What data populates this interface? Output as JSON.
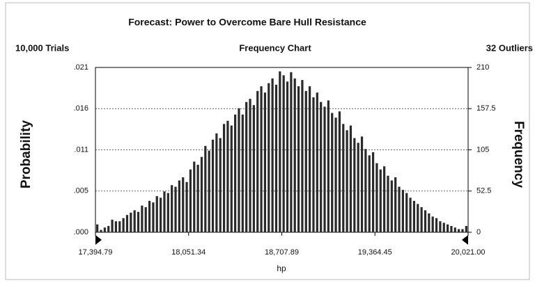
{
  "chart_data": {
    "type": "histogram",
    "title": "Forecast: Power to Overcome Bare Hull Resistance",
    "trials_label": "10,000 Trials",
    "subtitle": "Frequency Chart",
    "outliers_label": "32 Outliers",
    "ylabel": "Probability",
    "y2label": "Frequency",
    "xlabel": "hp",
    "color": "#2a2a2a",
    "grid": true,
    "xlim": [
      17394.79,
      20021.0
    ],
    "xticks": [
      {
        "value": 17394.79,
        "label": "17,394.79"
      },
      {
        "value": 18051.34,
        "label": "18,051.34"
      },
      {
        "value": 18707.89,
        "label": "18,707.89"
      },
      {
        "value": 19364.45,
        "label": "19,364.45"
      },
      {
        "value": 20021.0,
        "label": "20,021.00"
      }
    ],
    "ylim": [
      0,
      0.021
    ],
    "yticks": [
      {
        "value": 0,
        "label": ".000"
      },
      {
        "value": 0.00525,
        "label": ".005"
      },
      {
        "value": 0.0105,
        "label": ".011"
      },
      {
        "value": 0.01575,
        "label": ".016"
      },
      {
        "value": 0.021,
        "label": ".021"
      }
    ],
    "y2lim": [
      0,
      210
    ],
    "y2ticks": [
      0,
      52.5,
      105,
      157.5,
      210
    ],
    "bins": [
      17394.79,
      17421.05,
      17447.31,
      17473.58,
      17499.84,
      17526.1,
      17552.36,
      17578.62,
      17604.89,
      17631.15,
      17657.41,
      17683.67,
      17709.94,
      17736.2,
      17762.46,
      17788.72,
      17814.98,
      17841.25,
      17867.51,
      17893.77,
      17920.03,
      17946.29,
      17972.56,
      17998.82,
      18025.08,
      18051.34,
      18077.6,
      18103.87,
      18130.13,
      18156.39,
      18182.65,
      18208.92,
      18235.18,
      18261.44,
      18287.7,
      18313.96,
      18340.23,
      18366.49,
      18392.75,
      18419.01,
      18445.27,
      18471.54,
      18497.8,
      18524.06,
      18550.32,
      18576.58,
      18602.85,
      18629.11,
      18655.37,
      18681.63,
      18707.9,
      18734.16,
      18760.42,
      18786.68,
      18812.94,
      18839.21,
      18865.47,
      18891.73,
      18917.99,
      18944.25,
      18970.52,
      18996.78,
      19023.04,
      19049.3,
      19075.56,
      19101.83,
      19128.09,
      19154.35,
      19180.61,
      19206.87,
      19233.14,
      19259.4,
      19285.66,
      19311.92,
      19338.19,
      19364.45,
      19390.71,
      19416.97,
      19443.23,
      19469.5,
      19495.76,
      19522.02,
      19548.28,
      19574.54,
      19600.81,
      19627.07,
      19653.33,
      19679.59,
      19705.85,
      19732.12,
      19758.38,
      19784.64,
      19810.9,
      19837.17,
      19863.43,
      19889.69,
      19915.95,
      19942.21,
      19968.48,
      19994.74,
      20021.0
    ],
    "values": [
      10,
      3,
      6,
      8,
      16,
      14,
      14,
      18,
      22,
      25,
      28,
      26,
      34,
      32,
      40,
      38,
      46,
      44,
      52,
      50,
      60,
      58,
      66,
      70,
      64,
      80,
      90,
      86,
      96,
      110,
      104,
      118,
      126,
      120,
      138,
      142,
      136,
      150,
      158,
      150,
      166,
      170,
      162,
      180,
      186,
      178,
      190,
      196,
      188,
      205,
      200,
      192,
      204,
      196,
      186,
      194,
      180,
      186,
      172,
      178,
      166,
      160,
      168,
      152,
      146,
      154,
      138,
      130,
      136,
      120,
      114,
      122,
      106,
      98,
      102,
      88,
      80,
      84,
      72,
      66,
      70,
      58,
      54,
      50,
      44,
      40,
      36,
      32,
      28,
      24,
      20,
      18,
      14,
      12,
      10,
      8,
      6,
      4,
      4,
      8
    ],
    "axis": "y2"
  }
}
